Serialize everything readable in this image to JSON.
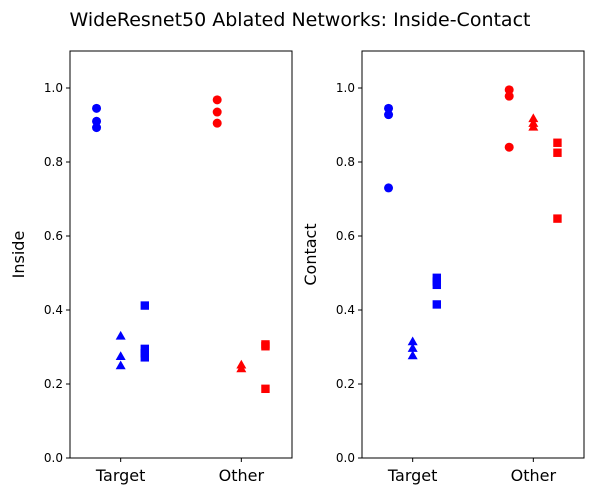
{
  "figure": {
    "suptitle": "WideResnet50 Ablated Networks: Inside-Contact"
  },
  "chart_data": [
    {
      "type": "scatter",
      "ylabel": "Inside",
      "ylim": [
        0.0,
        1.1
      ],
      "yticks": [
        "0.0",
        "0.2",
        "0.4",
        "0.6",
        "0.8",
        "1.0"
      ],
      "categories": [
        "Target",
        "Other"
      ],
      "grid": false,
      "groups": [
        {
          "category": "Target",
          "color": "#0000ff",
          "marker": "circle",
          "offset": -0.2,
          "values": [
            0.945,
            0.91,
            0.893
          ]
        },
        {
          "category": "Target",
          "color": "#0000ff",
          "marker": "triangle",
          "offset": 0.0,
          "values": [
            0.33,
            0.275,
            0.25
          ]
        },
        {
          "category": "Target",
          "color": "#0000ff",
          "marker": "square",
          "offset": 0.2,
          "values": [
            0.412,
            0.295,
            0.283,
            0.272
          ]
        },
        {
          "category": "Other",
          "color": "#ff0000",
          "marker": "circle",
          "offset": -0.2,
          "values": [
            0.968,
            0.935,
            0.905
          ]
        },
        {
          "category": "Other",
          "color": "#ff0000",
          "marker": "triangle",
          "offset": 0.0,
          "values": [
            0.252,
            0.242
          ]
        },
        {
          "category": "Other",
          "color": "#ff0000",
          "marker": "square",
          "offset": 0.2,
          "values": [
            0.307,
            0.302,
            0.187
          ]
        }
      ]
    },
    {
      "type": "scatter",
      "ylabel": "Contact",
      "ylim": [
        0.0,
        1.1
      ],
      "yticks": [
        "0.0",
        "0.2",
        "0.4",
        "0.6",
        "0.8",
        "1.0"
      ],
      "categories": [
        "Target",
        "Other"
      ],
      "grid": false,
      "groups": [
        {
          "category": "Target",
          "color": "#0000ff",
          "marker": "circle",
          "offset": -0.2,
          "values": [
            0.945,
            0.928,
            0.73
          ]
        },
        {
          "category": "Target",
          "color": "#0000ff",
          "marker": "triangle",
          "offset": 0.0,
          "values": [
            0.315,
            0.297,
            0.277
          ]
        },
        {
          "category": "Target",
          "color": "#0000ff",
          "marker": "square",
          "offset": 0.2,
          "values": [
            0.487,
            0.477,
            0.468,
            0.415
          ]
        },
        {
          "category": "Other",
          "color": "#ff0000",
          "marker": "circle",
          "offset": -0.2,
          "values": [
            0.995,
            0.978,
            0.84
          ]
        },
        {
          "category": "Other",
          "color": "#ff0000",
          "marker": "triangle",
          "offset": 0.0,
          "values": [
            0.918,
            0.905,
            0.895
          ]
        },
        {
          "category": "Other",
          "color": "#ff0000",
          "marker": "square",
          "offset": 0.2,
          "values": [
            0.852,
            0.825,
            0.647
          ]
        }
      ]
    }
  ]
}
